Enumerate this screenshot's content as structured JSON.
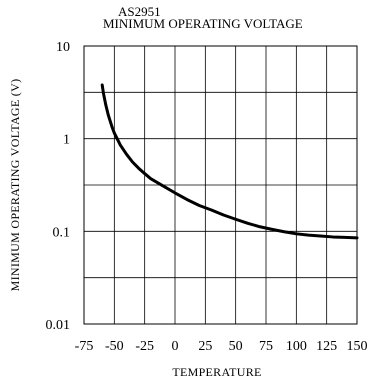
{
  "chart_data": {
    "type": "line",
    "title": "AS2951",
    "subtitle": "MINIMUM OPERATING VOLTAGE",
    "xlabel": "TEMPERATURE",
    "ylabel": "MINIMUM OPERATING VOLTAGE (V)",
    "xlim": [
      -75,
      150
    ],
    "ylim": [
      0.01,
      10
    ],
    "yscale": "log",
    "grid": true,
    "x_ticks": [
      "-75",
      "-50",
      "-25",
      "0",
      "25",
      "50",
      "75",
      "100",
      "125",
      "150"
    ],
    "x_tick_values": [
      -75,
      -50,
      -25,
      0,
      25,
      50,
      75,
      100,
      125,
      150
    ],
    "y_ticks": [
      "0.01",
      "0.1",
      "1",
      "10"
    ],
    "y_tick_values": [
      0.01,
      0.1,
      1,
      10
    ],
    "series": [
      {
        "x": [
          -60,
          -59,
          -57,
          -55,
          -52,
          -50,
          -45,
          -40,
          -35,
          -30,
          -25,
          -20,
          -10,
          0,
          10,
          20,
          30,
          40,
          50,
          60,
          70,
          80,
          90,
          100,
          110,
          120,
          130,
          140,
          150
        ],
        "y": [
          3.8,
          3.1,
          2.3,
          1.8,
          1.35,
          1.15,
          0.85,
          0.68,
          0.56,
          0.48,
          0.42,
          0.37,
          0.31,
          0.26,
          0.22,
          0.19,
          0.17,
          0.15,
          0.135,
          0.122,
          0.112,
          0.105,
          0.099,
          0.094,
          0.091,
          0.089,
          0.087,
          0.086,
          0.085
        ]
      }
    ]
  }
}
